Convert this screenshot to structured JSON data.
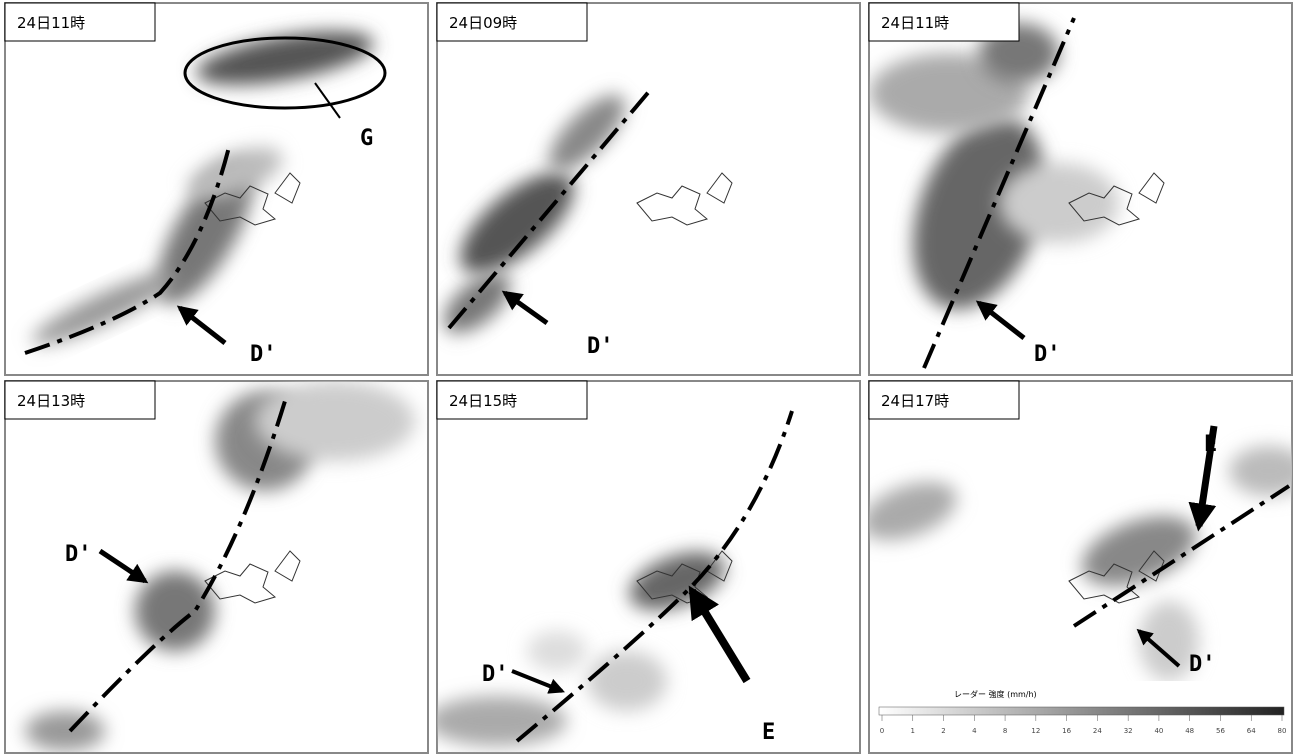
{
  "panels": [
    {
      "time": "24日11時",
      "labels": [
        "G",
        "D'"
      ]
    },
    {
      "time": "24日09時",
      "labels": [
        "D'"
      ]
    },
    {
      "time": "24日11時",
      "labels": [
        "D'"
      ]
    },
    {
      "time": "24日13時",
      "labels": [
        "D'"
      ]
    },
    {
      "time": "24日15時",
      "labels": [
        "D'",
        "E"
      ]
    },
    {
      "time": "24日17時",
      "labels": [
        "E",
        "D'"
      ]
    }
  ],
  "legend": {
    "title": "レーダー 強度 (mm/h)",
    "ticks": [
      0,
      1,
      2,
      4,
      8,
      12,
      16,
      24,
      32,
      40,
      48,
      56,
      64,
      80
    ]
  }
}
